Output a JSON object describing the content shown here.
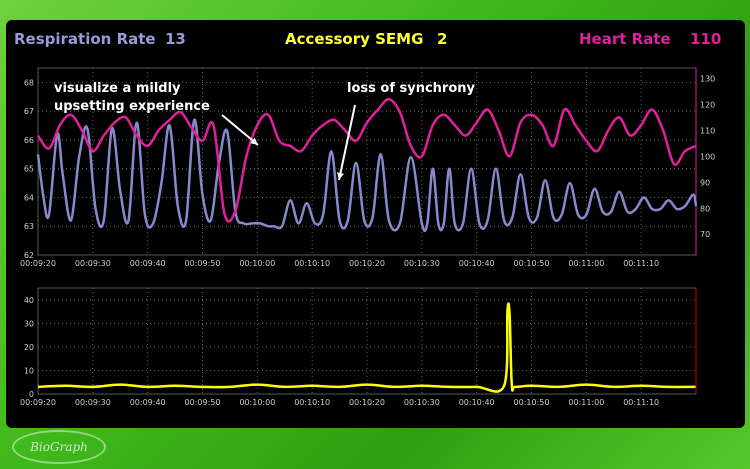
{
  "header": {
    "respiration": {
      "label": "Respiration Rate",
      "value": "13",
      "color": "#9a9ad8"
    },
    "semg": {
      "label": "Accessory SEMG",
      "value": "2",
      "color": "#ffff33"
    },
    "heart": {
      "label": "Heart Rate",
      "value": "110",
      "color": "#e020a0"
    }
  },
  "annotations": {
    "upsetting": "visualize a mildly upsetting experience",
    "sync": "loss of synchrony"
  },
  "logo": {
    "text": "BioGraph"
  },
  "chart_data": [
    {
      "type": "line",
      "title": "",
      "x_tick_labels": [
        "00:09:20",
        "00:09:30",
        "00:09:40",
        "00:09:50",
        "00:10:00",
        "00:10:10",
        "00:10:20",
        "00:10:30",
        "00:10:40",
        "00:10:50",
        "00:11:00",
        "00:11:10"
      ],
      "x_range_seconds": [
        0,
        120
      ],
      "left_axis": {
        "ticks": [
          "62",
          "63",
          "64",
          "65",
          "66",
          "67",
          "68"
        ],
        "range": [
          62,
          68.5
        ]
      },
      "right_axis": {
        "ticks": [
          "70",
          "80",
          "90",
          "100",
          "110",
          "120",
          "130"
        ],
        "range": [
          62,
          134
        ]
      },
      "grid": true,
      "series": [
        {
          "name": "Respiration Rate",
          "color": "#8888cc",
          "axis": "left",
          "x": [
            0,
            1,
            2,
            3.5,
            4.5,
            6,
            7.5,
            9,
            10.5,
            12,
            13.5,
            15,
            16.5,
            18,
            19.5,
            21,
            22.5,
            24,
            25.5,
            27,
            28.5,
            30,
            31.5,
            33,
            34.5,
            36,
            37.5,
            39,
            40.5,
            42,
            43,
            44.5,
            46,
            47.5,
            49,
            50.5,
            52,
            53.5,
            55,
            56.5,
            58,
            59.5,
            61,
            62.5,
            64,
            66,
            68,
            70,
            71,
            72,
            73,
            74,
            75,
            76,
            77.5,
            79,
            80.5,
            82,
            83.5,
            85,
            86.5,
            88,
            89.5,
            91,
            92.5,
            94,
            95.5,
            97,
            98.5,
            100,
            101.5,
            103,
            104.5,
            106,
            107.5,
            109,
            110.5,
            112,
            113.5,
            115,
            116.5,
            118,
            119.5,
            120
          ],
          "y": [
            65.5,
            64,
            63.4,
            66.2,
            64.8,
            63.2,
            65.4,
            66.4,
            63.6,
            63.2,
            66.4,
            64.2,
            63.2,
            66.6,
            63.4,
            63.1,
            64.5,
            66.5,
            63.7,
            63.2,
            66.7,
            64.1,
            63.2,
            65.2,
            66.3,
            63.5,
            63.1,
            63.1,
            63.1,
            63.0,
            63.0,
            63.0,
            63.9,
            63.1,
            63.8,
            63.1,
            63.4,
            65.6,
            63.2,
            63.2,
            65.2,
            63.2,
            63.3,
            65.5,
            63.2,
            63.1,
            65.4,
            63.1,
            63.1,
            65.0,
            63.1,
            63.1,
            65.0,
            63.1,
            63.1,
            65.0,
            63.1,
            63.2,
            65.0,
            63.2,
            63.3,
            64.8,
            63.3,
            63.3,
            64.6,
            63.3,
            63.4,
            64.5,
            63.4,
            63.4,
            64.3,
            63.5,
            63.5,
            64.2,
            63.5,
            63.6,
            64.0,
            63.6,
            63.6,
            63.9,
            63.6,
            63.7,
            64.1,
            63.7
          ]
        },
        {
          "name": "Heart Rate",
          "color": "#e0209a",
          "axis": "right",
          "x": [
            0,
            2,
            4,
            6,
            8,
            10,
            12,
            14,
            16,
            18,
            20,
            22,
            24,
            26,
            28,
            30,
            32,
            34,
            36,
            38,
            40,
            42,
            44,
            46,
            48,
            50,
            52,
            54,
            56,
            58,
            60,
            62,
            64,
            66,
            68,
            70,
            72,
            74,
            76,
            78,
            80,
            82,
            84,
            86,
            88,
            90,
            92,
            94,
            96,
            98,
            100,
            102,
            104,
            106,
            108,
            110,
            112,
            114,
            116,
            118,
            120
          ],
          "y": [
            108,
            103,
            112,
            116,
            110,
            102,
            108,
            113,
            115,
            108,
            104,
            110,
            114,
            117,
            111,
            106,
            112,
            78,
            79,
            100,
            112,
            116,
            106,
            104,
            102,
            108,
            112,
            114,
            110,
            106,
            113,
            118,
            122,
            117,
            104,
            100,
            112,
            116,
            112,
            108,
            113,
            118,
            110,
            100,
            113,
            116,
            112,
            104,
            118,
            112,
            106,
            102,
            110,
            115,
            108,
            112,
            118,
            110,
            97,
            102,
            104
          ]
        }
      ]
    },
    {
      "type": "line",
      "title": "",
      "x_tick_labels": [
        "00:09:20",
        "00:09:30",
        "00:09:40",
        "00:09:50",
        "00:10:00",
        "00:10:10",
        "00:10:20",
        "00:10:30",
        "00:10:40",
        "00:10:50",
        "00:11:00",
        "00:11:10"
      ],
      "x_range_seconds": [
        0,
        120
      ],
      "left_axis": {
        "ticks": [
          "0",
          "10",
          "20",
          "30",
          "40"
        ],
        "range": [
          0,
          45
        ]
      },
      "grid": true,
      "series": [
        {
          "name": "Accessory SEMG",
          "color": "#ffff00",
          "x": [
            0,
            5,
            10,
            15,
            20,
            25,
            30,
            35,
            40,
            45,
            50,
            55,
            60,
            65,
            70,
            75,
            80,
            85,
            85.6,
            86,
            86.4,
            87,
            90,
            95,
            100,
            105,
            110,
            115,
            120
          ],
          "y": [
            3,
            3.5,
            3,
            4,
            3,
            3.5,
            3,
            3,
            4,
            3,
            3.5,
            3,
            4,
            3,
            3.5,
            3,
            3,
            3.5,
            35,
            34,
            4,
            3,
            3.5,
            3,
            4,
            3,
            3.5,
            3,
            3
          ]
        }
      ]
    }
  ]
}
